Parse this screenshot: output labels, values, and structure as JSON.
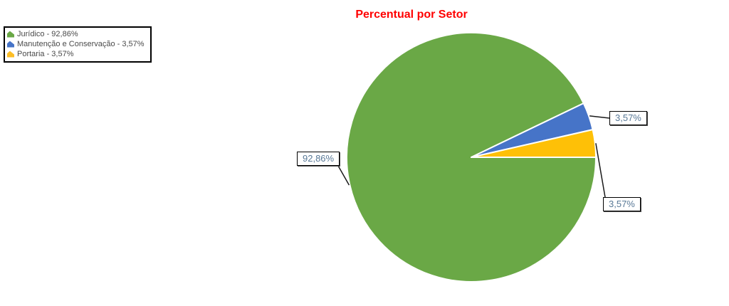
{
  "title": "Percentual por Setor",
  "title_color": "#ff0000",
  "legend": {
    "items": [
      {
        "label": "Jurídico - 92,86%",
        "color": "#6aa846"
      },
      {
        "label": "Manutenção e Conservação - 3,57%",
        "color": "#4674c8"
      },
      {
        "label": "Portaria - 3,57%",
        "color": "#fdbe27"
      }
    ]
  },
  "callouts": {
    "juridico": "92,86%",
    "manutencao": "3,57%",
    "portaria": "3,57%"
  },
  "chart_data": {
    "type": "pie",
    "title": "Percentual por Setor",
    "categories": [
      "Jurídico",
      "Manutenção e Conservação",
      "Portaria"
    ],
    "values": [
      92.86,
      3.57,
      3.57
    ],
    "unit": "%",
    "colors": [
      "#6aa846",
      "#4674c8",
      "#fec007"
    ],
    "slice_labels": [
      "92,86%",
      "3,57%",
      "3,57%"
    ],
    "legend_position": "top-left",
    "start_angle_deg": 0,
    "direction": "clockwise",
    "separator_color": "#ffffff"
  }
}
